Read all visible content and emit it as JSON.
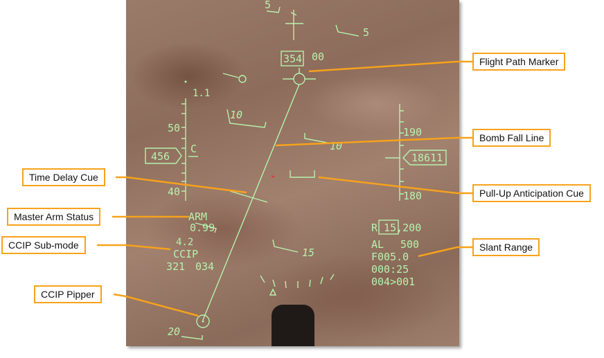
{
  "callouts": {
    "flight_path_marker": "Flight Path Marker",
    "bomb_fall_line": "Bomb Fall Line",
    "time_delay_cue": "Time Delay Cue",
    "pull_up_anticipation_cue": "Pull-Up Anticipation Cue",
    "master_arm_status": "Master Arm Status",
    "slant_range": "Slant Range",
    "ccip_sub_mode": "CCIP Sub-mode",
    "ccip_pipper": "CCIP Pipper"
  },
  "hud": {
    "heading_box": "354",
    "heading_right": "00",
    "pitch_top_left": "5",
    "pitch_top_right": "5",
    "pitch_10_left": "10",
    "pitch_10_right": "10",
    "pitch_15": "15",
    "pitch_20": "20",
    "g_load": "1.1",
    "airspeed": "456",
    "airspeed_mode": "C",
    "speed_tick_50": "50",
    "speed_tick_40": "40",
    "alt_tick_190": "190",
    "alt_tick_180": "180",
    "altitude": "18611",
    "arm_status": "ARM",
    "mach": "0.99",
    "max_g": "4.2",
    "ccip_mode": "CCIP",
    "bottom_left_a": "321",
    "bottom_left_b": "034",
    "slant_range": "R 15,200",
    "al_label": "AL",
    "al_value": "500",
    "fuze_line": "F005.0",
    "time_line": "000:25",
    "steerpoint_line": "004>001"
  },
  "colors": {
    "hud_symbology": "#b6f2ad",
    "callout_border": "#f7a21b",
    "callout_leader": "#f7a21b",
    "terrain_base": "#9a7a68"
  }
}
